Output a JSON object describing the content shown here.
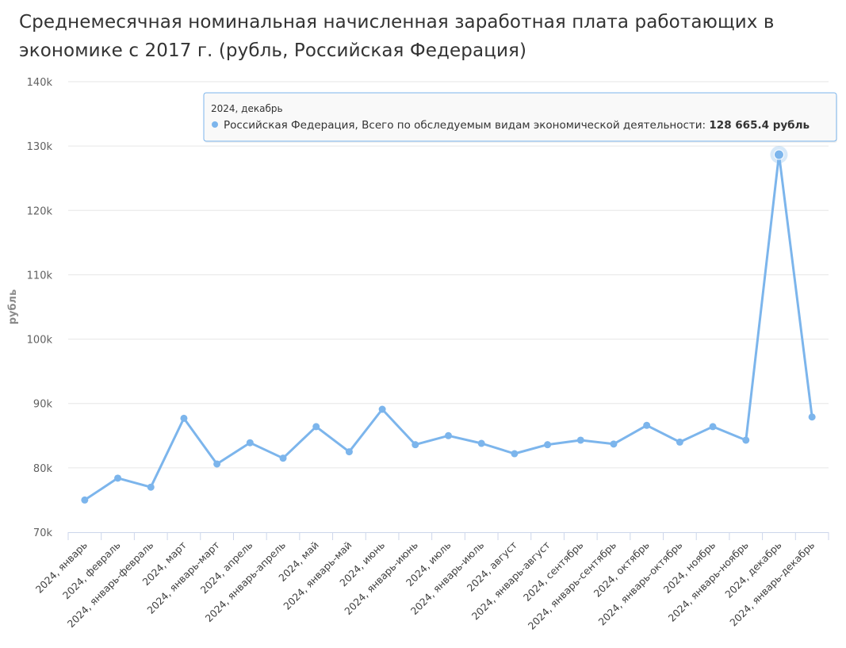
{
  "title": "Среднемесячная номинальная начисленная заработная плата работающих в экономике с 2017 г. (рубль, Российская Федерация)",
  "colors": {
    "series": "#7cb5ec",
    "grid": "#e6e6e6",
    "axis": "#ccd6eb",
    "text": "#333333"
  },
  "chart_data": {
    "type": "line",
    "ylabel": "рубль",
    "xlabel": "",
    "ylim": [
      70000,
      140000
    ],
    "yticks": [
      70000,
      80000,
      90000,
      100000,
      110000,
      120000,
      130000,
      140000
    ],
    "ytick_labels": [
      "70k",
      "80k",
      "90k",
      "100k",
      "110k",
      "120k",
      "130k",
      "140k"
    ],
    "grid": true,
    "categories": [
      "2024, январь",
      "2024, февраль",
      "2024, январь-февраль",
      "2024, март",
      "2024, январь-март",
      "2024, апрель",
      "2024, январь-апрель",
      "2024, май",
      "2024, январь-май",
      "2024, июнь",
      "2024, январь-июнь",
      "2024, июль",
      "2024, январь-июль",
      "2024, август",
      "2024, январь-август",
      "2024, сентябрь",
      "2024, январь-сентябрь",
      "2024, октябрь",
      "2024, январь-октябрь",
      "2024, ноябрь",
      "2024, январь-ноябрь",
      "2024, декабрь",
      "2024, январь-декабрь"
    ],
    "series": [
      {
        "name": "Российская Федерация, Всего по обследуемым видам экономической деятельности",
        "values": [
          75000,
          78400,
          77000,
          87700,
          80600,
          83900,
          81500,
          86400,
          82500,
          89100,
          83600,
          85000,
          83800,
          82200,
          83600,
          84300,
          83700,
          86600,
          84000,
          86400,
          84300,
          128665.4,
          87900
        ]
      }
    ],
    "tooltip": {
      "category": "2024, декабрь",
      "series_label": "Российская Федерация, Всего по обследуемым видам экономической деятельности",
      "value_text": "128 665.4 рубль",
      "highlight_index": 21
    }
  }
}
